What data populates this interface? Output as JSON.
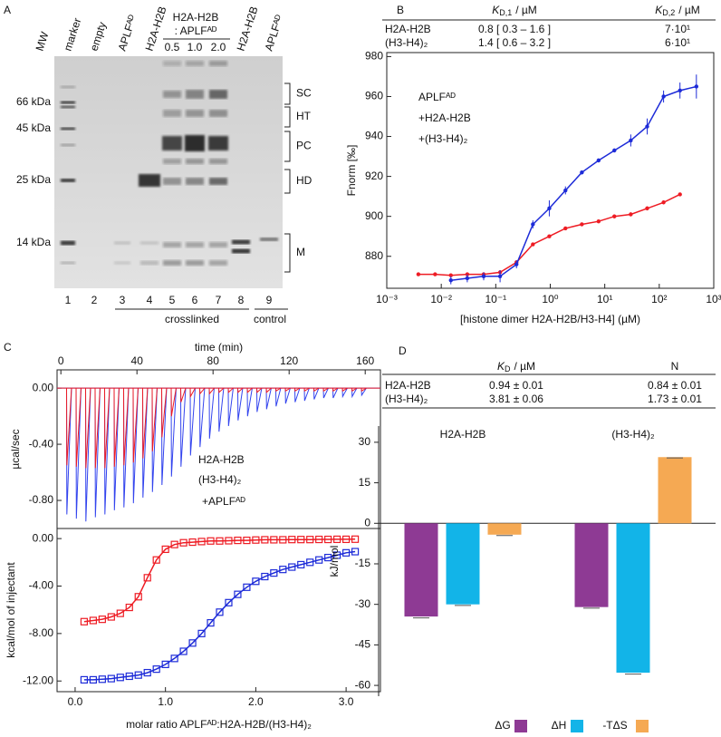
{
  "panel_labels": [
    "A",
    "B",
    "C",
    "D"
  ],
  "gel": {
    "columns": [
      "MW",
      "marker",
      "empty",
      "APLFᴬᴰ",
      "H2A-H2B",
      "H2A-H2B",
      "APLFᴬᴰ"
    ],
    "group_header": [
      "H2A-H2B",
      ": APLFᴬᴰ"
    ],
    "ratios": [
      "0.5",
      "1.0",
      "2.0"
    ],
    "mw_labels": [
      "66 kDa",
      "45 kDa",
      "25 kDa",
      "14 kDa"
    ],
    "band_labels": [
      "SC",
      "HT",
      "PC",
      "HD",
      "M"
    ],
    "lanes": [
      "1",
      "2",
      "3",
      "4",
      "5",
      "6",
      "7",
      "8",
      "9"
    ],
    "groups": [
      "crosslinked",
      "control"
    ]
  },
  "table_b": {
    "columns": [
      {
        "symbol": "K",
        "sub": "D,1",
        "unit": "/ µM"
      },
      {
        "symbol": "K",
        "sub": "D,2",
        "unit": "/ µM"
      }
    ],
    "rows": [
      [
        "H2A-H2B",
        "0.8 [ 0.3 – 1.6 ]",
        "7·10¹"
      ],
      [
        "(H3-H4)₂",
        "1.4 [ 0.6 – 3.2 ]",
        "6·10¹"
      ]
    ]
  },
  "table_d": {
    "columns": [
      {
        "symbol": "K",
        "sub": "D",
        "unit": "/ µM"
      },
      "N"
    ],
    "rows": [
      [
        "H2A-H2B",
        "0.94 ± 0.01",
        "0.84 ± 0.01"
      ],
      [
        "(H3-H4)₂",
        "3.81 ± 0.06",
        "1.73 ± 0.01"
      ]
    ]
  },
  "chart_data": [
    {
      "type": "line",
      "xscale": "log",
      "ylabel": "Fnorm [‰]",
      "xlabel": "[histone dimer H2A-H2B/H3-H4] (µM)",
      "legend_title": "APLFᴬᴰ",
      "xlim": [
        0.001,
        1000
      ],
      "xticks": [
        {
          "value": 0.001,
          "label": "10⁻³"
        },
        {
          "value": 0.01,
          "label": "10⁻²"
        },
        {
          "value": 0.1,
          "label": "10⁻¹"
        },
        {
          "value": 1,
          "label": "10⁰"
        },
        {
          "value": 10,
          "label": "10¹"
        },
        {
          "value": 100,
          "label": "10²"
        },
        {
          "value": 1000,
          "label": "10³"
        }
      ],
      "ylim": [
        864,
        982
      ],
      "yticks": [
        880,
        900,
        920,
        940,
        960,
        980
      ],
      "series": [
        {
          "name": "+H2A-H2B",
          "color": "#ee1c24",
          "x": [
            0.0038,
            0.0077,
            0.015,
            0.03,
            0.06,
            0.12,
            0.24,
            0.48,
            0.96,
            1.9,
            3.8,
            7.7,
            15,
            30,
            60,
            120,
            240
          ],
          "values": [
            871,
            871,
            870.5,
            871,
            871,
            872,
            877,
            886,
            890,
            894,
            896,
            897.5,
            900,
            901,
            904,
            907,
            911
          ],
          "errors": [
            0.5,
            0.5,
            0.5,
            0.5,
            0.5,
            0.5,
            0.8,
            0.8,
            0.8,
            0.8,
            0.8,
            0.8,
            1,
            1,
            1,
            1,
            0.8
          ]
        },
        {
          "name": "+(H3-H4)₂",
          "color": "#1d2bd8",
          "x": [
            0.015,
            0.03,
            0.06,
            0.12,
            0.24,
            0.48,
            0.96,
            1.9,
            3.8,
            7.7,
            15,
            30,
            60,
            120,
            240,
            480
          ],
          "values": [
            868,
            869,
            870,
            870,
            876,
            896,
            904,
            913,
            922,
            928,
            933,
            938,
            945,
            960,
            963,
            965
          ],
          "errors": [
            2,
            2,
            2,
            3,
            2,
            2,
            4,
            2,
            1,
            1,
            1,
            3,
            4,
            3,
            4,
            6
          ]
        }
      ]
    },
    {
      "type": "thermogram",
      "xaxis": "top",
      "xlabel": "time (min)",
      "ylabel": "µcal/sec",
      "legend_title": "+APLFᴬᴰ",
      "xlim": [
        -2,
        168
      ],
      "xticks": [
        0,
        40,
        80,
        120,
        160
      ],
      "ylim": [
        -1.0,
        0.13
      ],
      "yticks": [
        {
          "value": 0,
          "label": "0.00"
        },
        {
          "value": -0.4,
          "label": "-0.40"
        },
        {
          "value": -0.8,
          "label": "-0.80"
        }
      ],
      "series": [
        {
          "name": "H2A-H2B",
          "color": "#ee1c24",
          "x": [
            3,
            8,
            13,
            18,
            23,
            28,
            33,
            38,
            43,
            48,
            53,
            58,
            63,
            68,
            73,
            78,
            83,
            88,
            93,
            98,
            103,
            108,
            113,
            118,
            123,
            128,
            133,
            138,
            143,
            148,
            153,
            158
          ],
          "values": [
            -0.55,
            -0.56,
            -0.57,
            -0.57,
            -0.57,
            -0.56,
            -0.55,
            -0.53,
            -0.5,
            -0.45,
            -0.35,
            -0.2,
            -0.1,
            -0.06,
            -0.04,
            -0.04,
            -0.03,
            -0.03,
            -0.03,
            -0.03,
            -0.03,
            -0.03,
            -0.02,
            -0.02,
            -0.02,
            -0.02,
            -0.02,
            -0.02,
            -0.02,
            -0.02,
            -0.02,
            -0.02
          ]
        },
        {
          "name": "(H3-H4)₂",
          "color": "#3344ee",
          "x": [
            3,
            8,
            13,
            18,
            23,
            28,
            33,
            38,
            43,
            48,
            53,
            58,
            63,
            68,
            73,
            78,
            83,
            88,
            93,
            98,
            103,
            108,
            113,
            118,
            123,
            128,
            133,
            138,
            143,
            148,
            153,
            158
          ],
          "values": [
            -0.9,
            -0.93,
            -0.95,
            -0.92,
            -0.9,
            -0.87,
            -0.85,
            -0.82,
            -0.78,
            -0.74,
            -0.69,
            -0.63,
            -0.56,
            -0.48,
            -0.42,
            -0.36,
            -0.31,
            -0.27,
            -0.23,
            -0.2,
            -0.17,
            -0.15,
            -0.13,
            -0.11,
            -0.1,
            -0.09,
            -0.08,
            -0.07,
            -0.07,
            -0.06,
            -0.06,
            -0.05
          ]
        }
      ]
    },
    {
      "type": "scatter",
      "xlabel": "molar ratio APLFᴬᴰ:H2A-H2B/(H3-H4)₂",
      "ylabel": "kcal/mol of injectant",
      "xlim": [
        -0.2,
        3.38
      ],
      "xticks": [
        {
          "value": 0,
          "label": "0.0"
        },
        {
          "value": 1,
          "label": "1.0"
        },
        {
          "value": 2,
          "label": "2.0"
        },
        {
          "value": 3,
          "label": "3.0"
        }
      ],
      "ylim": [
        -12.9,
        0.85
      ],
      "yticks": [
        {
          "value": 0,
          "label": "0.00"
        },
        {
          "value": -4,
          "label": "-4.00"
        },
        {
          "value": -8,
          "label": "-8.00"
        },
        {
          "value": -12,
          "label": "-12.00"
        }
      ],
      "series": [
        {
          "color": "#ee1c24",
          "x": [
            0.1,
            0.2,
            0.3,
            0.4,
            0.5,
            0.6,
            0.7,
            0.8,
            0.9,
            1.0,
            1.1,
            1.2,
            1.3,
            1.4,
            1.5,
            1.6,
            1.7,
            1.8,
            1.9,
            2.0,
            2.1,
            2.2,
            2.3,
            2.4,
            2.5,
            2.6,
            2.7,
            2.8,
            2.9,
            3.0,
            3.1
          ],
          "values": [
            -7.0,
            -6.9,
            -6.8,
            -6.6,
            -6.3,
            -5.8,
            -4.9,
            -3.3,
            -1.8,
            -0.9,
            -0.5,
            -0.35,
            -0.3,
            -0.25,
            -0.2,
            -0.2,
            -0.18,
            -0.15,
            -0.15,
            -0.12,
            -0.1,
            -0.1,
            -0.1,
            -0.08,
            -0.08,
            -0.08,
            -0.07,
            -0.07,
            -0.06,
            -0.06,
            -0.05
          ]
        },
        {
          "color": "#1d2bd8",
          "x": [
            0.1,
            0.2,
            0.3,
            0.4,
            0.5,
            0.6,
            0.7,
            0.8,
            0.9,
            1.0,
            1.1,
            1.2,
            1.3,
            1.4,
            1.5,
            1.6,
            1.7,
            1.8,
            1.9,
            2.0,
            2.1,
            2.2,
            2.3,
            2.4,
            2.5,
            2.6,
            2.7,
            2.8,
            2.9,
            3.0,
            3.1
          ],
          "values": [
            -11.9,
            -11.9,
            -11.85,
            -11.8,
            -11.7,
            -11.6,
            -11.5,
            -11.3,
            -11.0,
            -10.6,
            -10.1,
            -9.5,
            -8.8,
            -8.0,
            -7.1,
            -6.2,
            -5.4,
            -4.7,
            -4.1,
            -3.6,
            -3.2,
            -2.9,
            -2.6,
            -2.4,
            -2.2,
            -2.0,
            -1.8,
            -1.6,
            -1.4,
            -1.2,
            -1.1
          ]
        }
      ]
    },
    {
      "type": "bar",
      "ylabel": "kJ/mol",
      "categories": [
        "H2A-H2B",
        "(H3-H4)₂"
      ],
      "category_colors": [
        "#ee1c24",
        "#1d2bd8"
      ],
      "ylim": [
        -64,
        36
      ],
      "yticks": [
        30,
        15,
        0,
        -15,
        -30,
        -45,
        -60
      ],
      "series": [
        {
          "name": "ΔG",
          "color": "#8e3a94",
          "values": [
            -34.5,
            -31
          ],
          "errors": [
            0.5,
            0.4
          ]
        },
        {
          "name": "ΔH",
          "color": "#12b4e8",
          "values": [
            -30,
            -55.3
          ],
          "errors": [
            0.4,
            0.5
          ]
        },
        {
          "name": "-TΔS",
          "color": "#f5a953",
          "values": [
            -4.2,
            24.5
          ],
          "errors": [
            0.3,
            0.3
          ]
        }
      ]
    }
  ]
}
